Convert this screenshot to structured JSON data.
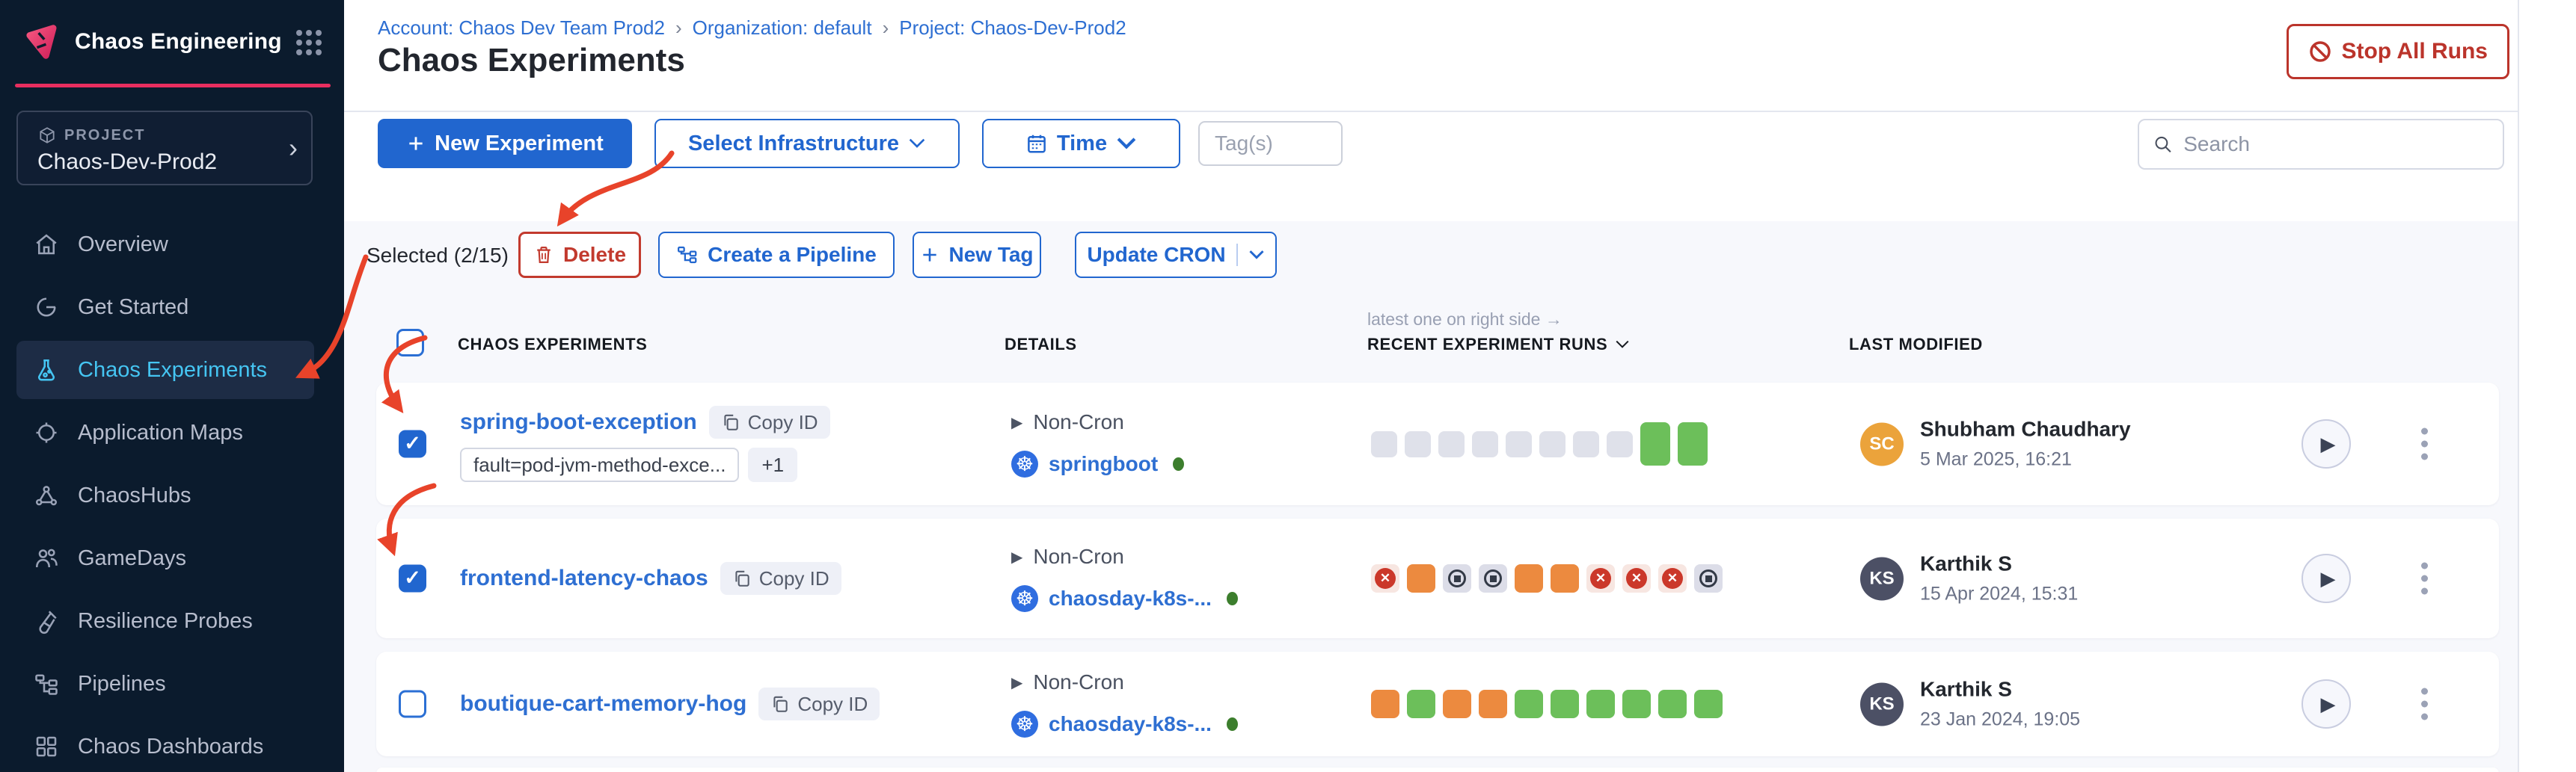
{
  "brand": {
    "app_title": "Chaos Engineering"
  },
  "project": {
    "label": "PROJECT",
    "name": "Chaos-Dev-Prod2"
  },
  "sidebar": {
    "items": [
      {
        "label": "Overview"
      },
      {
        "label": "Get Started"
      },
      {
        "label": "Chaos Experiments",
        "active": true
      },
      {
        "label": "Application Maps"
      },
      {
        "label": "ChaosHubs"
      },
      {
        "label": "GameDays"
      },
      {
        "label": "Resilience Probes"
      },
      {
        "label": "Pipelines"
      },
      {
        "label": "Chaos Dashboards"
      }
    ]
  },
  "breadcrumb": {
    "account": "Account: Chaos Dev Team Prod2",
    "org": "Organization: default",
    "project": "Project: Chaos-Dev-Prod2",
    "separator": "›"
  },
  "page": {
    "title": "Chaos Experiments"
  },
  "header": {
    "stop_all_runs_label": "Stop All Runs"
  },
  "toolbar": {
    "new_experiment_label": "New Experiment",
    "select_infrastructure_label": "Select Infrastructure",
    "time_label": "Time",
    "tags_placeholder": "Tag(s)",
    "search_placeholder": "Search"
  },
  "selection_bar": {
    "selected_label": "Selected (2/15)",
    "delete_label": "Delete",
    "create_pipeline_label": "Create a Pipeline",
    "new_tag_label": "New Tag",
    "update_cron_label": "Update CRON"
  },
  "table": {
    "runs_note": "latest one on right side →",
    "headers": {
      "experiments": "CHAOS EXPERIMENTS",
      "details": "DETAILS",
      "runs": "RECENT EXPERIMENT RUNS",
      "last_modified": "LAST MODIFIED"
    }
  },
  "rows": [
    {
      "selected": true,
      "name": "spring-boot-exception",
      "copy_label": "Copy ID",
      "tags": [
        "fault=pod-jvm-method-exce..."
      ],
      "tag_more": "+1",
      "schedule": "Non-Cron",
      "infra": "springboot",
      "runs": [
        {
          "status": "queued"
        },
        {
          "status": "queued"
        },
        {
          "status": "queued"
        },
        {
          "status": "queued"
        },
        {
          "status": "queued"
        },
        {
          "status": "queued"
        },
        {
          "status": "queued"
        },
        {
          "status": "queued"
        },
        {
          "status": "passed",
          "tall": true
        },
        {
          "status": "passed",
          "tall": true
        }
      ],
      "user": {
        "initials": "SC",
        "name": "Shubham Chaudhary",
        "color": "#eba33b"
      },
      "modified": "5 Mar 2025, 16:21"
    },
    {
      "selected": true,
      "name": "frontend-latency-chaos",
      "copy_label": "Copy ID",
      "schedule": "Non-Cron",
      "infra": "chaosday-k8s-...",
      "runs": [
        {
          "status": "failed"
        },
        {
          "status": "running"
        },
        {
          "status": "stopped"
        },
        {
          "status": "stopped"
        },
        {
          "status": "running"
        },
        {
          "status": "running"
        },
        {
          "status": "failed"
        },
        {
          "status": "failed"
        },
        {
          "status": "failed"
        },
        {
          "status": "stopped"
        }
      ],
      "user": {
        "initials": "KS",
        "name": "Karthik S",
        "color": "#4c5065"
      },
      "modified": "15 Apr 2024, 15:31"
    },
    {
      "selected": false,
      "name": "boutique-cart-memory-hog",
      "copy_label": "Copy ID",
      "schedule": "Non-Cron",
      "infra": "chaosday-k8s-...",
      "runs": [
        {
          "status": "running"
        },
        {
          "status": "passed"
        },
        {
          "status": "running"
        },
        {
          "status": "running"
        },
        {
          "status": "passed"
        },
        {
          "status": "passed"
        },
        {
          "status": "passed"
        },
        {
          "status": "passed"
        },
        {
          "status": "passed"
        },
        {
          "status": "passed"
        }
      ],
      "user": {
        "initials": "KS",
        "name": "Karthik S",
        "color": "#4c5065"
      },
      "modified": "23 Jan 2024, 19:05"
    }
  ],
  "colors": {
    "annotation": "#e8432a",
    "accent_blue": "#2166cf",
    "brand_pink": "#e82e5f"
  }
}
